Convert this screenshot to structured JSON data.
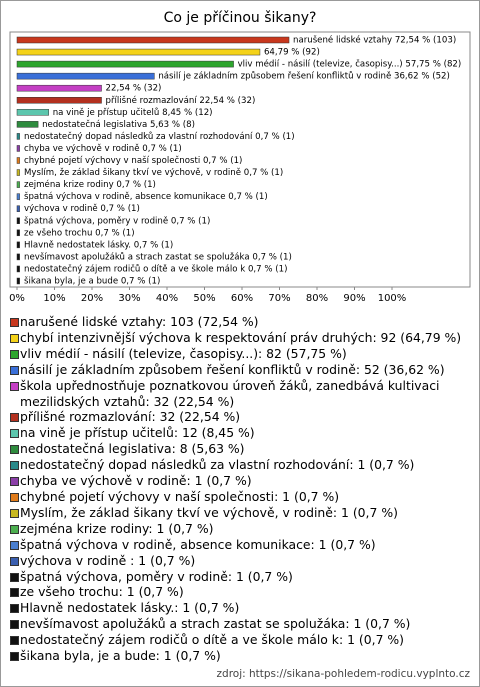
{
  "chart_data": {
    "type": "bar",
    "orientation": "horizontal",
    "title": "Co je příčinou šikany?",
    "values": [
      72.54,
      64.79,
      57.75,
      36.62,
      22.54,
      22.54,
      8.45,
      5.63,
      0.7,
      0.7,
      0.7,
      0.7,
      0.7,
      0.7,
      0.7,
      0.7,
      0.7,
      0.7,
      0.7,
      0.7,
      0.7
    ],
    "value_labels": [
      "narušené lidské vztahy 72,54 % (103)",
      "64,79 % (92)",
      "vliv médií - násilí (televize, časopisy...) 57,75 % (82)",
      "násilí je základním způsobem řešení konfliktů v rodině 36,62 % (52)",
      "22,54 % (32)",
      "přílišné rozmazlování 22,54 % (32)",
      "na vině je přístup učitelů 8,45 % (12)",
      "nedostatečná legislativa 5,63 % (8)",
      "nedostatečný dopad následků za vlastní rozhodování 0,7 % (1)",
      "chyba ve výchově v rodině 0,7 % (1)",
      "chybné pojetí výchovy v naší společnosti 0,7 % (1)",
      "Myslím, že základ šikany tkví ve výchově, v rodině 0,7 % (1)",
      "zejména krize rodiny 0,7 % (1)",
      "špatná výchova v rodině, absence komunikace 0,7 % (1)",
      "výchova v rodině 0,7 % (1)",
      "špatná výchova, poměry v rodině 0,7 % (1)",
      "ze všeho trochu 0,7 % (1)",
      "Hlavně nedostatek lásky. 0,7 % (1)",
      "nevšímavost apolužáků a strach zastat se spolužáka 0,7 % (1)",
      "nedostatečný zájem rodičů o dítě a ve škole málo k 0,7 % (1)",
      "šikana byla, je a bude 0,7 % (1)"
    ],
    "colors": [
      "#c8381e",
      "#f4d219",
      "#2ea52e",
      "#3a6fd8",
      "#c43fc4",
      "#b3301f",
      "#5cc6ad",
      "#2e8b3e",
      "#2a8a8a",
      "#8b3fa8",
      "#e07b1a",
      "#c8b820",
      "#4caf50",
      "#4a7fd0",
      "#3a5fb0",
      "#111111",
      "#111111",
      "#111111",
      "#111111",
      "#111111",
      "#111111"
    ],
    "legend": [
      "narušené lidské vztahy: 103 (72,54 %)",
      "chybí intenzivnější výchova k respektování práv druhých: 92 (64,79 %)",
      "vliv médií - násilí (televize, časopisy...): 82 (57,75 %)",
      "násilí je základním způsobem řešení konfliktů v rodině: 52 (36,62 %)",
      "škola upřednostňuje poznatkovou úroveň žáků, zanedbává kultivaci mezilidských vztahů: 32 (22,54 %)",
      "přílišné rozmazlování: 32 (22,54 %)",
      "na vině je přístup učitelů: 12 (8,45 %)",
      "nedostatečná legislativa: 8 (5,63 %)",
      "nedostatečný dopad následků za vlastní rozhodování: 1 (0,7 %)",
      "chyba ve výchově v rodině: 1 (0,7 %)",
      "chybné pojetí výchovy v naší společnosti: 1 (0,7 %)",
      "Myslím, že základ šikany tkví ve výchově, v rodině: 1 (0,7 %)",
      "zejména krize rodiny: 1 (0,7 %)",
      "špatná výchova v rodině, absence komunikace: 1 (0,7 %)",
      "výchova v rodině : 1 (0,7 %)",
      "špatná výchova, poměry v rodině: 1 (0,7 %)",
      "ze všeho trochu: 1 (0,7 %)",
      "Hlavně nedostatek lásky.: 1 (0,7 %)",
      "nevšímavost apolužáků a strach zastat se spolužáka: 1 (0,7 %)",
      "nedostatečný zájem rodičů o dítě a ve škole málo k: 1 (0,7 %)",
      "šikana byla, je a bude: 1 (0,7 %)"
    ],
    "xlim": [
      0,
      120
    ],
    "xticks": [
      {
        "value": 0,
        "label": "0%"
      },
      {
        "value": 10,
        "label": "10%"
      },
      {
        "value": 20,
        "label": "20%"
      },
      {
        "value": 30,
        "label": "30%"
      },
      {
        "value": 40,
        "label": "40%"
      },
      {
        "value": 50,
        "label": "50%"
      },
      {
        "value": 60,
        "label": "60%"
      },
      {
        "value": 70,
        "label": "70%"
      },
      {
        "value": 80,
        "label": "80%"
      },
      {
        "value": 90,
        "label": "90%"
      },
      {
        "value": 100,
        "label": "100%"
      }
    ],
    "source": "zdroj: https://sikana-pohledem-rodicu.vyplnto.cz"
  }
}
